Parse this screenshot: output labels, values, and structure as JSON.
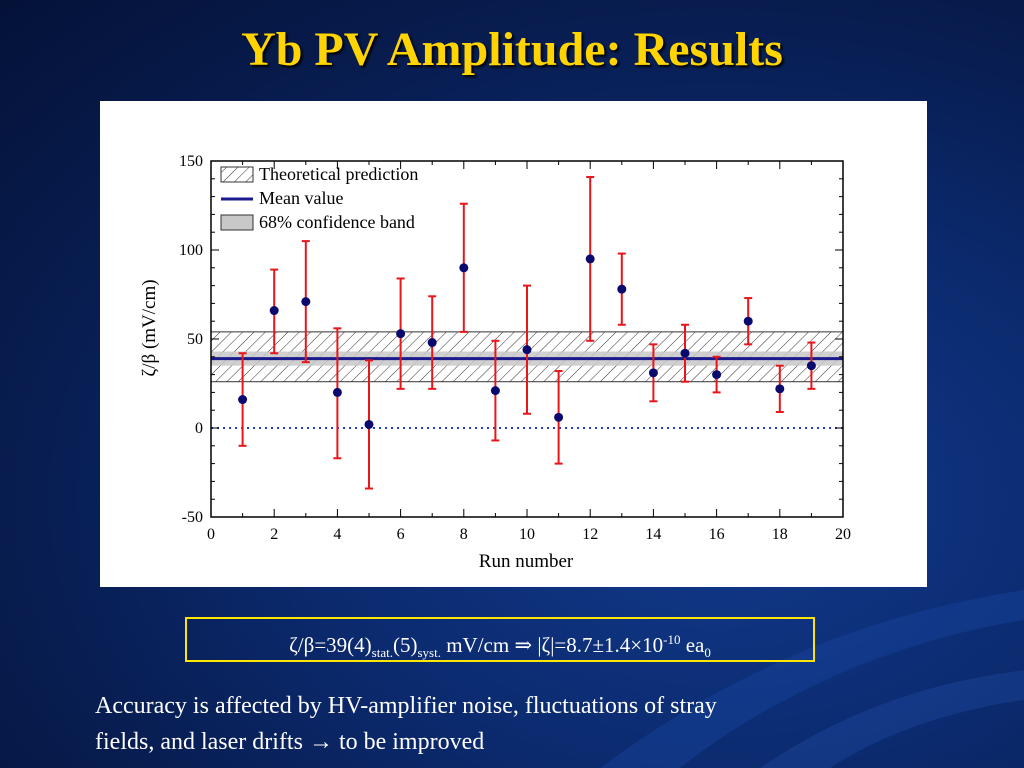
{
  "title": {
    "main": "Yb PV Amplitude:",
    "highlight": "Results"
  },
  "colors": {
    "title": "#ffd400",
    "error_bar": "#e8161b",
    "marker": "#0a0a6e",
    "mean_line": "#1a1a8c",
    "band_fill": "#c8c8c8",
    "zero_line": "#1e3fcf",
    "box_border": "#ffe600"
  },
  "chart_data": {
    "type": "scatter",
    "xlabel": "Run number",
    "ylabel": "ζ/β (mV/cm)",
    "xlim": [
      0,
      20
    ],
    "ylim": [
      -50,
      150
    ],
    "xticks": [
      0,
      2,
      4,
      6,
      8,
      10,
      12,
      14,
      16,
      18,
      20
    ],
    "yticks": [
      -50,
      0,
      50,
      100,
      150
    ],
    "points": [
      {
        "x": 1,
        "y": 16,
        "err_low": 26,
        "err_high": 26
      },
      {
        "x": 2,
        "y": 66,
        "err_low": 24,
        "err_high": 23
      },
      {
        "x": 3,
        "y": 71,
        "err_low": 34,
        "err_high": 34
      },
      {
        "x": 4,
        "y": 20,
        "err_low": 37,
        "err_high": 36
      },
      {
        "x": 5,
        "y": 2,
        "err_low": 36,
        "err_high": 36
      },
      {
        "x": 6,
        "y": 53,
        "err_low": 31,
        "err_high": 31
      },
      {
        "x": 7,
        "y": 48,
        "err_low": 26,
        "err_high": 26
      },
      {
        "x": 8,
        "y": 90,
        "err_low": 36,
        "err_high": 36
      },
      {
        "x": 9,
        "y": 21,
        "err_low": 28,
        "err_high": 28
      },
      {
        "x": 10,
        "y": 44,
        "err_low": 36,
        "err_high": 36
      },
      {
        "x": 11,
        "y": 6,
        "err_low": 26,
        "err_high": 26
      },
      {
        "x": 12,
        "y": 95,
        "err_low": 46,
        "err_high": 46
      },
      {
        "x": 13,
        "y": 78,
        "err_low": 20,
        "err_high": 20
      },
      {
        "x": 14,
        "y": 31,
        "err_low": 16,
        "err_high": 16
      },
      {
        "x": 15,
        "y": 42,
        "err_low": 16,
        "err_high": 16
      },
      {
        "x": 16,
        "y": 30,
        "err_low": 10,
        "err_high": 10
      },
      {
        "x": 17,
        "y": 60,
        "err_low": 13,
        "err_high": 13
      },
      {
        "x": 18,
        "y": 22,
        "err_low": 13,
        "err_high": 13
      },
      {
        "x": 19,
        "y": 35,
        "err_low": 13,
        "err_high": 13
      }
    ],
    "mean_value": 39,
    "confidence_band": [
      35,
      43
    ],
    "theoretical_band": [
      26,
      54
    ],
    "zero_line": 0,
    "legend": {
      "placement": "top-left",
      "entries": [
        "Theoretical prediction",
        "Mean value",
        "68% confidence band"
      ]
    }
  },
  "result": {
    "lhs": "ζ/β=39(4)",
    "stat_sub": "stat.",
    "syst_val": "(5)",
    "syst_sub": "syst.",
    "units": " mV/cm ",
    "arrow": "⇒",
    "rhs": " |ζ|=8.7±1.4×10",
    "exp": "-10",
    "ea": " ea",
    "ea_sub": "0"
  },
  "note": {
    "line1": "Accuracy is affected by HV-amplifier noise, fluctuations of stray",
    "line2": "fields, and  laser drifts  →  to be improved"
  }
}
